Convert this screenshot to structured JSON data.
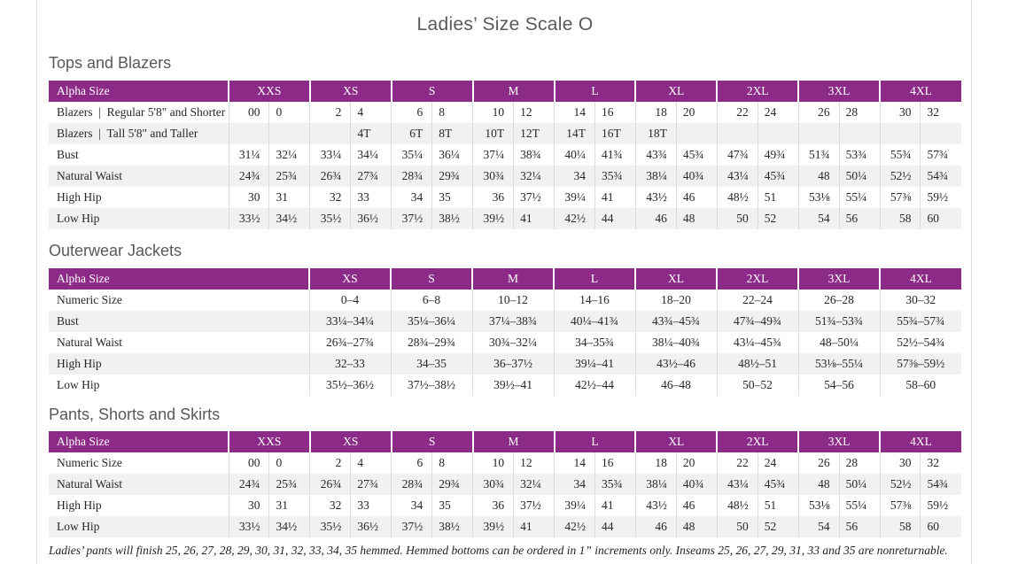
{
  "title": "Ladies’ Size Scale O",
  "footnote": "Ladies’ pants will finish 25, 26, 27, 28, 29, 30, 31, 32, 33, 34, 35 hemmed. Hemmed bottoms can be ordered in 1” increments only. Inseams 25, 26, 27, 29, 31, 33 and 35 are nonreturnable.",
  "colors": {
    "header_purple": "#8c2a87",
    "row_alt_gray": "#f2f1f1",
    "heading_gray": "#58595b"
  },
  "tables": [
    {
      "section": "Tops and Blazers",
      "paired": true,
      "label_header": "Alpha Size",
      "label_col_width": 203,
      "groups": [
        "XXS",
        "XS",
        "S",
        "M",
        "L",
        "XL",
        "2XL",
        "3XL",
        "4XL"
      ],
      "rows": [
        {
          "label": "Blazers  |  Regular 5'8\" and Shorter",
          "values": [
            [
              "00",
              "0"
            ],
            [
              "2",
              "4"
            ],
            [
              "6",
              "8"
            ],
            [
              "10",
              "12"
            ],
            [
              "14",
              "16"
            ],
            [
              "18",
              "20"
            ],
            [
              "22",
              "24"
            ],
            [
              "26",
              "28"
            ],
            [
              "30",
              "32"
            ]
          ]
        },
        {
          "label": "Blazers  |  Tall 5'8\" and Taller",
          "values": [
            [
              "",
              ""
            ],
            [
              "",
              "4T"
            ],
            [
              "6T",
              "8T"
            ],
            [
              "10T",
              "12T"
            ],
            [
              "14T",
              "16T"
            ],
            [
              "18T",
              ""
            ],
            [
              "",
              ""
            ],
            [
              "",
              ""
            ],
            [
              "",
              ""
            ]
          ]
        },
        {
          "label": "Bust",
          "values": [
            [
              "31¼",
              "32¼"
            ],
            [
              "33¼",
              "34¼"
            ],
            [
              "35¼",
              "36¼"
            ],
            [
              "37¼",
              "38¾"
            ],
            [
              "40¼",
              "41¾"
            ],
            [
              "43¾",
              "45¾"
            ],
            [
              "47¾",
              "49¾"
            ],
            [
              "51¾",
              "53¾"
            ],
            [
              "55¾",
              "57¾"
            ]
          ]
        },
        {
          "label": "Natural Waist",
          "values": [
            [
              "24¾",
              "25¾"
            ],
            [
              "26¾",
              "27¾"
            ],
            [
              "28¾",
              "29¾"
            ],
            [
              "30¾",
              "32¼"
            ],
            [
              "34",
              "35¾"
            ],
            [
              "38¼",
              "40¾"
            ],
            [
              "43¼",
              "45¾"
            ],
            [
              "48",
              "50¼"
            ],
            [
              "52½",
              "54¾"
            ]
          ]
        },
        {
          "label": "High Hip",
          "values": [
            [
              "30",
              "31"
            ],
            [
              "32",
              "33"
            ],
            [
              "34",
              "35"
            ],
            [
              "36",
              "37½"
            ],
            [
              "39¼",
              "41"
            ],
            [
              "43½",
              "46"
            ],
            [
              "48½",
              "51"
            ],
            [
              "53⅛",
              "55¼"
            ],
            [
              "57⅜",
              "59½"
            ]
          ]
        },
        {
          "label": "Low Hip",
          "values": [
            [
              "33½",
              "34½"
            ],
            [
              "35½",
              "36½"
            ],
            [
              "37½",
              "38½"
            ],
            [
              "39½",
              "41"
            ],
            [
              "42½",
              "44"
            ],
            [
              "46",
              "48"
            ],
            [
              "50",
              "52"
            ],
            [
              "54",
              "56"
            ],
            [
              "58",
              "60"
            ]
          ]
        }
      ]
    },
    {
      "section": "Outerwear Jackets",
      "paired": false,
      "label_header": "Alpha Size",
      "label_col_width": 294,
      "groups": [
        "XS",
        "S",
        "M",
        "L",
        "XL",
        "2XL",
        "3XL",
        "4XL"
      ],
      "rows": [
        {
          "label": "Numeric Size",
          "values": [
            "0–4",
            "6–8",
            "10–12",
            "14–16",
            "18–20",
            "22–24",
            "26–28",
            "30–32"
          ]
        },
        {
          "label": "Bust",
          "values": [
            "33¼–34¼",
            "35¼–36¼",
            "37¼–38¾",
            "40¼–41¾",
            "43¾–45¾",
            "47¾–49¾",
            "51¾–53¾",
            "55¾–57¾"
          ]
        },
        {
          "label": "Natural Waist",
          "values": [
            "26¾–27¾",
            "28¾–29¾",
            "30¾–32¼",
            "34–35¾",
            "38¼–40¾",
            "43¼–45¾",
            "48–50¼",
            "52½–54¾"
          ]
        },
        {
          "label": "High Hip",
          "values": [
            "32–33",
            "34–35",
            "36–37½",
            "39¼–41",
            "43½–46",
            "48½–51",
            "53⅛–55¼",
            "57⅜–59½"
          ]
        },
        {
          "label": "Low Hip",
          "values": [
            "35½–36½",
            "37½–38½",
            "39½–41",
            "42½–44",
            "46–48",
            "50–52",
            "54–56",
            "58–60"
          ]
        }
      ]
    },
    {
      "section": "Pants, Shorts and Skirts",
      "paired": true,
      "label_header": "Alpha Size",
      "label_col_width": 203,
      "groups": [
        "XXS",
        "XS",
        "S",
        "M",
        "L",
        "XL",
        "2XL",
        "3XL",
        "4XL"
      ],
      "rows": [
        {
          "label": "Numeric Size",
          "values": [
            [
              "00",
              "0"
            ],
            [
              "2",
              "4"
            ],
            [
              "6",
              "8"
            ],
            [
              "10",
              "12"
            ],
            [
              "14",
              "16"
            ],
            [
              "18",
              "20"
            ],
            [
              "22",
              "24"
            ],
            [
              "26",
              "28"
            ],
            [
              "30",
              "32"
            ]
          ]
        },
        {
          "label": "Natural Waist",
          "values": [
            [
              "24¾",
              "25¾"
            ],
            [
              "26¾",
              "27¾"
            ],
            [
              "28¾",
              "29¾"
            ],
            [
              "30¾",
              "32¼"
            ],
            [
              "34",
              "35¾"
            ],
            [
              "38¼",
              "40¾"
            ],
            [
              "43¼",
              "45¾"
            ],
            [
              "48",
              "50¼"
            ],
            [
              "52½",
              "54¾"
            ]
          ]
        },
        {
          "label": "High Hip",
          "values": [
            [
              "30",
              "31"
            ],
            [
              "32",
              "33"
            ],
            [
              "34",
              "35"
            ],
            [
              "36",
              "37½"
            ],
            [
              "39¼",
              "41"
            ],
            [
              "43½",
              "46"
            ],
            [
              "48½",
              "51"
            ],
            [
              "53⅛",
              "55¼"
            ],
            [
              "57⅜",
              "59½"
            ]
          ]
        },
        {
          "label": "Low Hip",
          "values": [
            [
              "33½",
              "34½"
            ],
            [
              "35½",
              "36½"
            ],
            [
              "37½",
              "38½"
            ],
            [
              "39½",
              "41"
            ],
            [
              "42½",
              "44"
            ],
            [
              "46",
              "48"
            ],
            [
              "50",
              "52"
            ],
            [
              "54",
              "56"
            ],
            [
              "58",
              "60"
            ]
          ]
        }
      ]
    }
  ]
}
